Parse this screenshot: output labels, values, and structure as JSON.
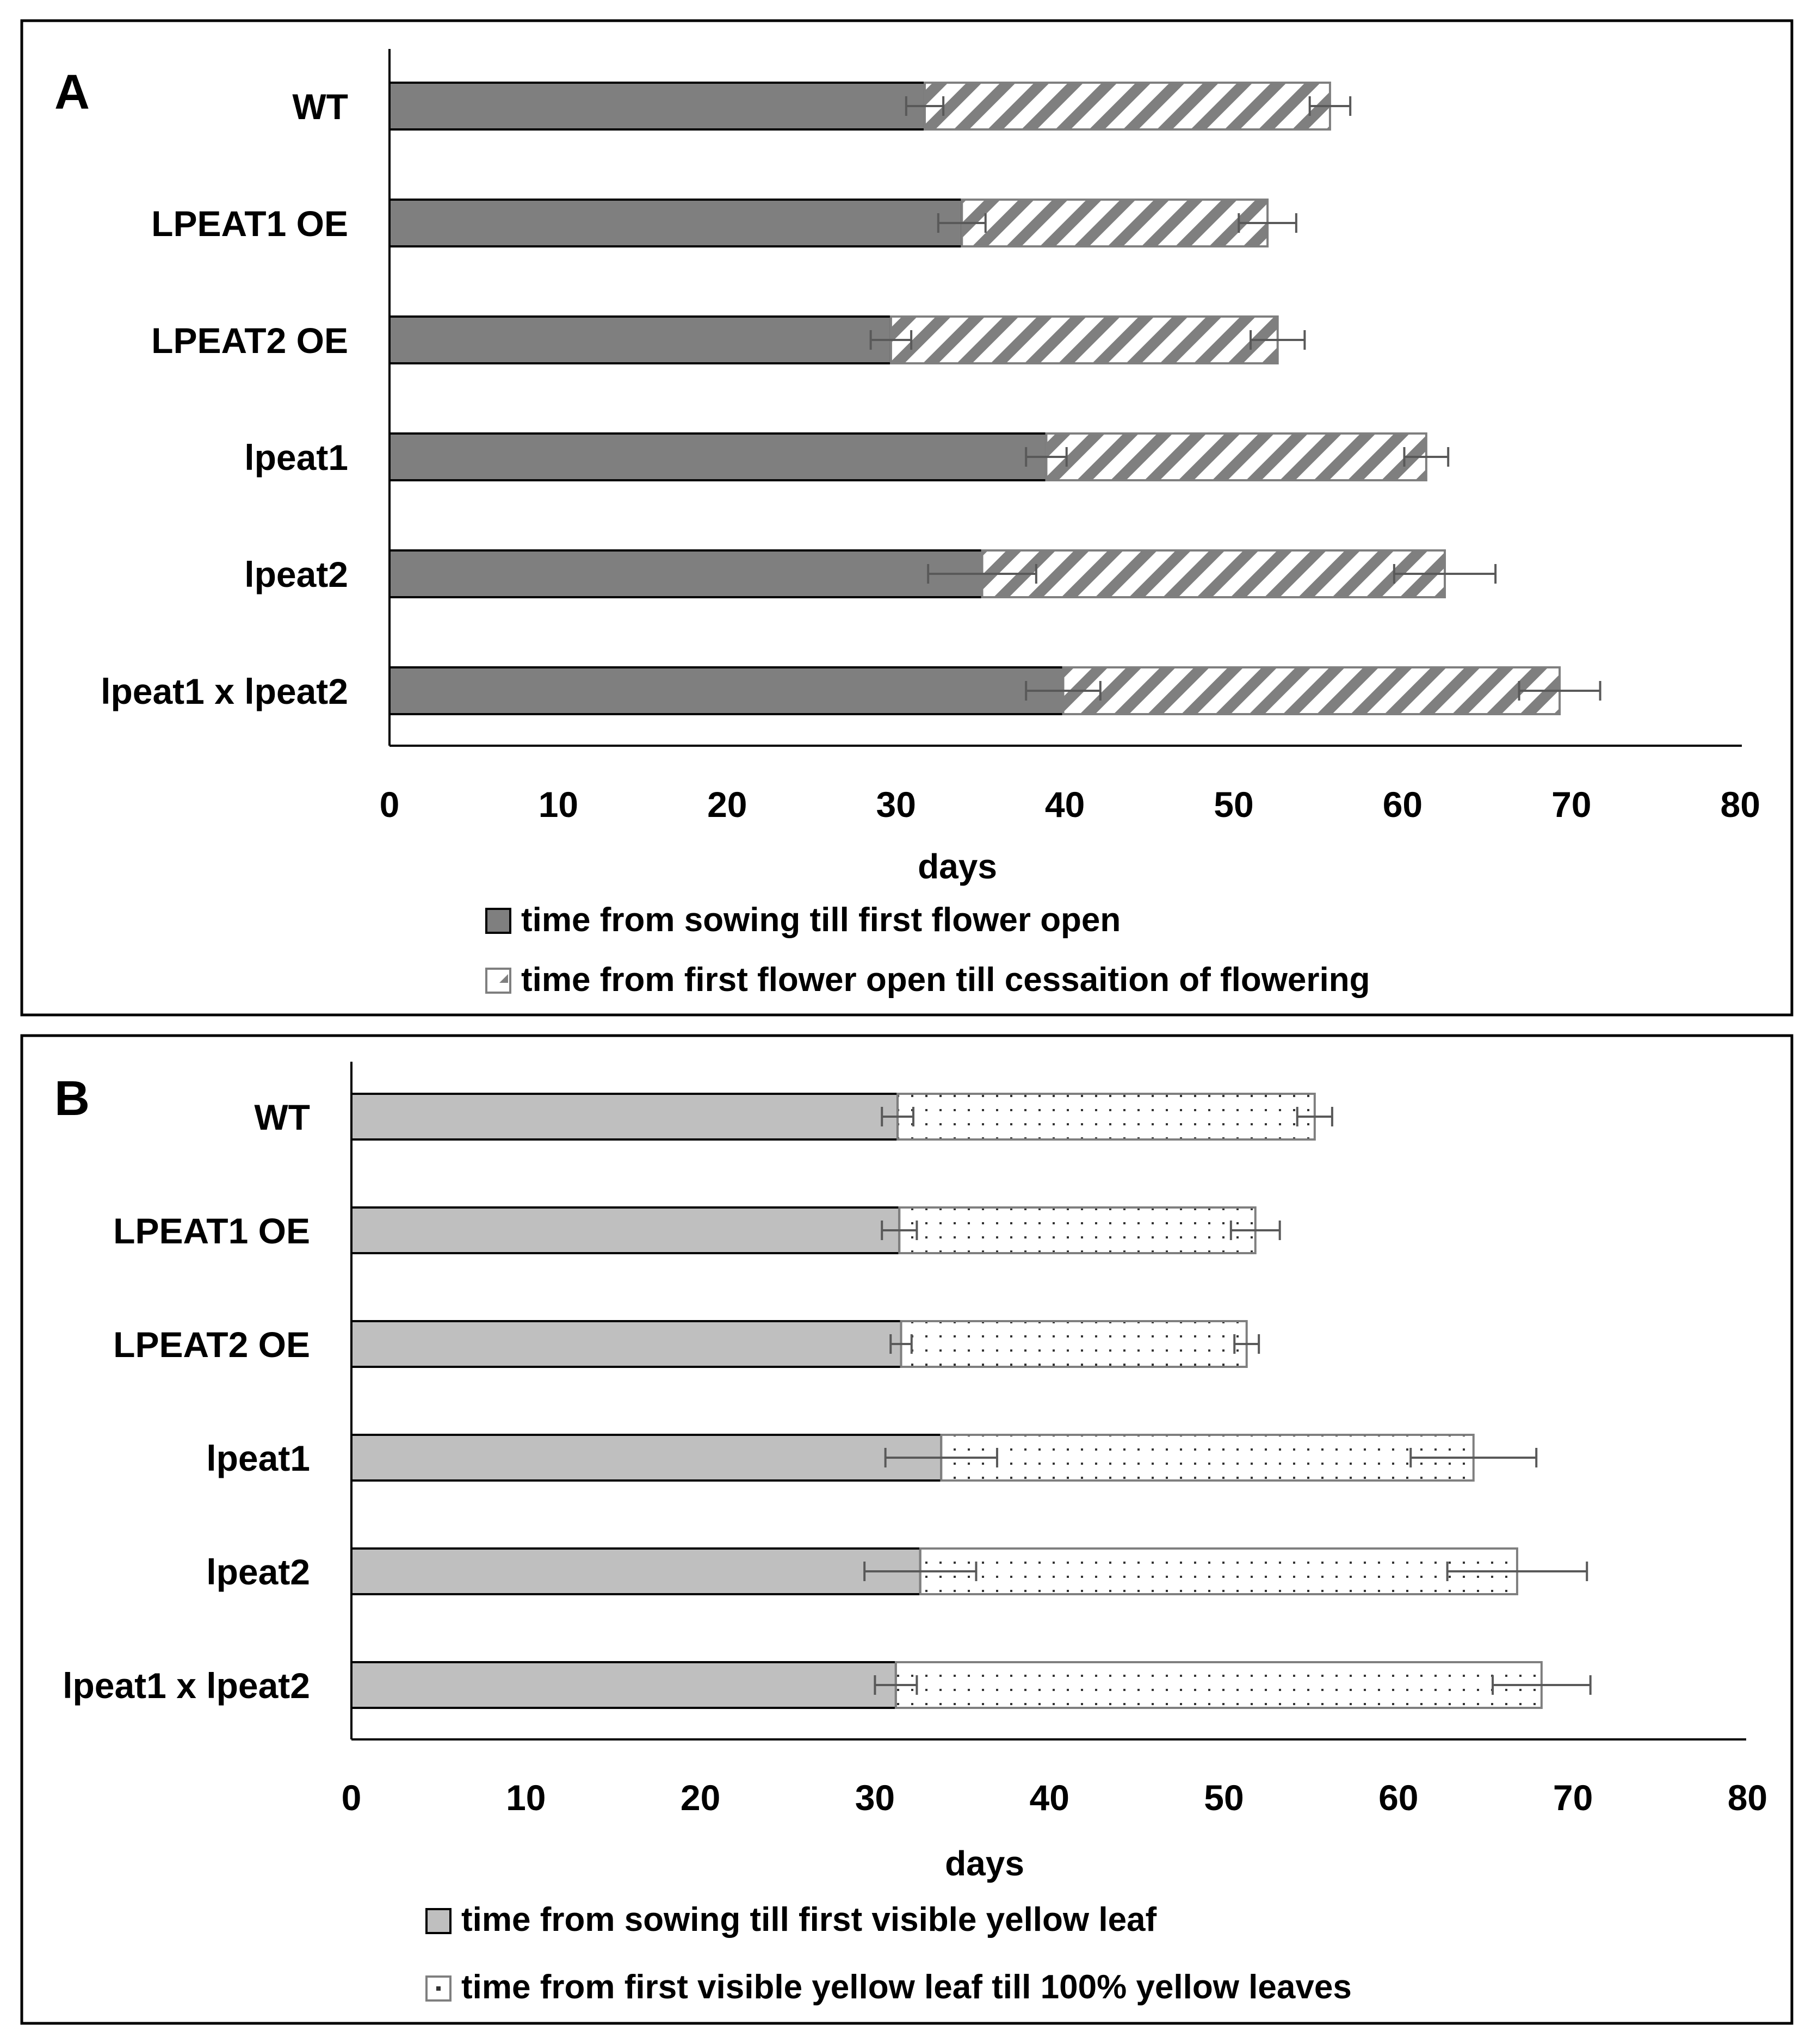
{
  "chart_data": [
    {
      "type": "bar",
      "orientation": "horizontal",
      "stacked": true,
      "panel_label": "A",
      "categories": [
        "WT",
        "LPEAT1 OE",
        "LPEAT2 OE",
        "lpeat1",
        "lpeat2",
        "lpeat1 x lpeat2"
      ],
      "series": [
        {
          "name": "time from sowing till first flower open",
          "pattern": "solid",
          "fill": "#7f7f7f",
          "values": [
            31.7,
            33.9,
            29.7,
            38.9,
            35.1,
            39.9
          ],
          "errors": [
            1.1,
            1.4,
            1.2,
            1.2,
            3.2,
            2.2
          ]
        },
        {
          "name": "time from first flower open till cessaition of flowering",
          "pattern": "diagonal-stripes",
          "fill": "#ffffff",
          "values": [
            24.0,
            18.1,
            22.9,
            22.5,
            27.4,
            29.4
          ],
          "errors": [
            1.2,
            1.7,
            1.6,
            1.3,
            3.0,
            2.4
          ]
        }
      ],
      "xlabel": "days",
      "xlim": [
        0,
        80
      ],
      "xticks": [
        "0",
        "10",
        "20",
        "30",
        "40",
        "50",
        "60",
        "70",
        "80"
      ],
      "grid": false,
      "legend_position": "bottom"
    },
    {
      "type": "bar",
      "orientation": "horizontal",
      "stacked": true,
      "panel_label": "B",
      "categories": [
        "WT",
        "LPEAT1 OE",
        "LPEAT2 OE",
        "lpeat1",
        "lpeat2",
        "lpeat1 x lpeat2"
      ],
      "series": [
        {
          "name": "time from sowing till first visible yellow leaf",
          "pattern": "solid",
          "fill": "#bfbfbf",
          "values": [
            31.3,
            31.4,
            31.5,
            33.8,
            32.6,
            31.2
          ],
          "errors": [
            0.9,
            1.0,
            0.6,
            3.2,
            3.2,
            1.2
          ]
        },
        {
          "name": "time from first visible yellow leaf till 100% yellow leaves",
          "pattern": "dots",
          "fill": "#ffffff",
          "values": [
            23.9,
            20.4,
            19.8,
            30.5,
            34.2,
            37.0
          ],
          "errors": [
            1.0,
            1.4,
            0.7,
            3.6,
            4.0,
            2.8
          ]
        }
      ],
      "xlabel": "days",
      "xlim": [
        0,
        80
      ],
      "xticks": [
        "0",
        "10",
        "20",
        "30",
        "40",
        "50",
        "60",
        "70",
        "80"
      ],
      "grid": false,
      "legend_position": "bottom"
    }
  ]
}
